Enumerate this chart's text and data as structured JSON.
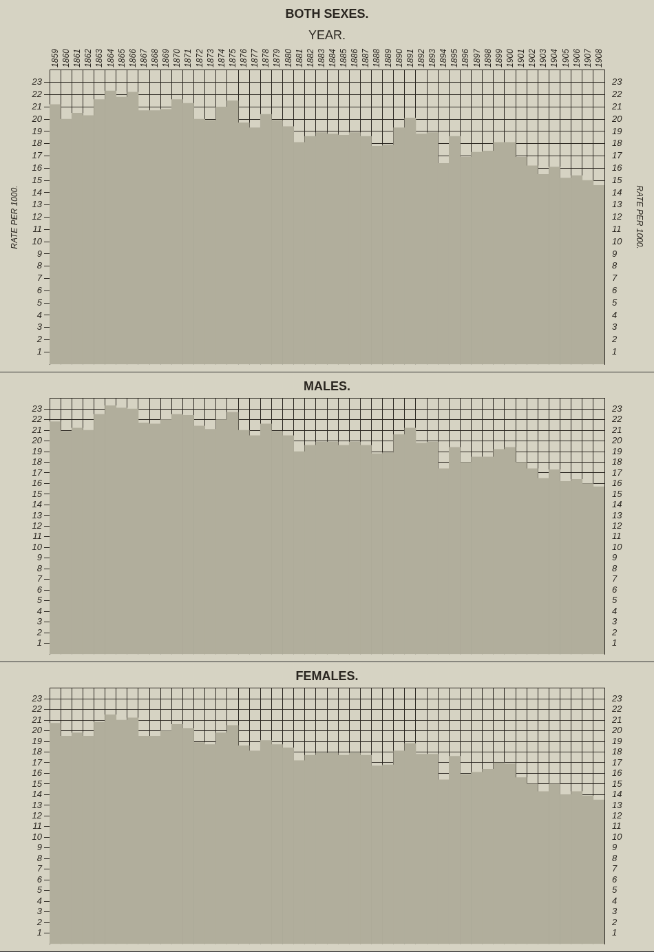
{
  "chart_data": [
    {
      "type": "bar",
      "title": "BOTH SEXES.",
      "xlabel": "YEAR.",
      "ylabel": "RATE PER 1000.",
      "y2label": "RATE PER 1000.",
      "categories": [
        "1859",
        "1860",
        "1861",
        "1862",
        "1863",
        "1864",
        "1865",
        "1866",
        "1867",
        "1868",
        "1869",
        "1870",
        "1871",
        "1872",
        "1873",
        "1874",
        "1875",
        "1876",
        "1877",
        "1878",
        "1879",
        "1880",
        "1881",
        "1882",
        "1883",
        "1884",
        "1885",
        "1886",
        "1887",
        "1888",
        "1889",
        "1890",
        "1891",
        "1892",
        "1893",
        "1894",
        "1895",
        "1896",
        "1897",
        "1898",
        "1899",
        "1900",
        "1901",
        "1902",
        "1903",
        "1904",
        "1905",
        "1906",
        "1907",
        "1908"
      ],
      "values": [
        21.2,
        20.0,
        20.5,
        20.3,
        21.6,
        22.3,
        21.8,
        22.2,
        20.7,
        20.7,
        20.8,
        21.6,
        21.3,
        20.0,
        19.9,
        21.0,
        21.5,
        19.7,
        19.3,
        20.4,
        19.9,
        19.4,
        18.1,
        18.6,
        18.9,
        18.8,
        18.7,
        18.9,
        18.6,
        17.8,
        17.9,
        19.3,
        20.1,
        18.8,
        18.9,
        16.4,
        18.6,
        16.9,
        17.3,
        17.4,
        18.1,
        18.1,
        16.9,
        16.2,
        15.5,
        16.1,
        15.2,
        15.4,
        15.0,
        14.6
      ],
      "color": "#b1ae9c",
      "ylim": [
        0,
        24
      ],
      "yticks": [
        1,
        2,
        3,
        4,
        5,
        6,
        7,
        8,
        9,
        10,
        11,
        12,
        13,
        14,
        15,
        16,
        17,
        18,
        19,
        20,
        21,
        22,
        23
      ],
      "y2lim": [
        0,
        24
      ],
      "y2ticks": [
        1,
        2,
        3,
        4,
        5,
        6,
        7,
        8,
        9,
        10,
        11,
        12,
        13,
        14,
        15,
        16,
        17,
        18,
        19,
        20,
        21,
        22,
        23
      ],
      "grid": true
    },
    {
      "type": "bar",
      "title": "MALES.",
      "categories": [
        "1859",
        "1860",
        "1861",
        "1862",
        "1863",
        "1864",
        "1865",
        "1866",
        "1867",
        "1868",
        "1869",
        "1870",
        "1871",
        "1872",
        "1873",
        "1874",
        "1875",
        "1876",
        "1877",
        "1878",
        "1879",
        "1880",
        "1881",
        "1882",
        "1883",
        "1884",
        "1885",
        "1886",
        "1887",
        "1888",
        "1889",
        "1890",
        "1891",
        "1892",
        "1893",
        "1894",
        "1895",
        "1896",
        "1897",
        "1898",
        "1899",
        "1900",
        "1901",
        "1902",
        "1903",
        "1904",
        "1905",
        "1906",
        "1907",
        "1908"
      ],
      "values": [
        21.8,
        20.9,
        21.2,
        21.0,
        22.5,
        23.3,
        23.1,
        23.0,
        21.7,
        21.6,
        22.0,
        22.5,
        22.4,
        21.4,
        21.1,
        22.0,
        22.7,
        21.0,
        20.5,
        21.6,
        20.9,
        20.5,
        19.0,
        19.6,
        19.9,
        19.9,
        19.6,
        19.9,
        19.6,
        18.8,
        18.9,
        20.6,
        21.2,
        19.8,
        19.9,
        17.4,
        19.4,
        18.0,
        18.5,
        18.5,
        19.2,
        19.4,
        18.0,
        17.4,
        16.5,
        17.3,
        16.2,
        16.4,
        16.0,
        15.7
      ],
      "color": "#b1ae9c",
      "ylim": [
        0,
        24
      ],
      "yticks": [
        1,
        2,
        3,
        4,
        5,
        6,
        7,
        8,
        9,
        10,
        11,
        12,
        13,
        14,
        15,
        16,
        17,
        18,
        19,
        20,
        21,
        22,
        23
      ],
      "y2lim": [
        0,
        24
      ],
      "y2ticks": [
        1,
        2,
        3,
        4,
        5,
        6,
        7,
        8,
        9,
        10,
        11,
        12,
        13,
        14,
        15,
        16,
        17,
        18,
        19,
        20,
        21,
        22,
        23
      ],
      "grid": true,
      "tick_labels": "y"
    },
    {
      "type": "bar",
      "title": "FEMALES.",
      "categories": [
        "1859",
        "1860",
        "1861",
        "1862",
        "1863",
        "1864",
        "1865",
        "1866",
        "1867",
        "1868",
        "1869",
        "1870",
        "1871",
        "1872",
        "1873",
        "1874",
        "1875",
        "1876",
        "1877",
        "1878",
        "1879",
        "1880",
        "1881",
        "1882",
        "1883",
        "1884",
        "1885",
        "1886",
        "1887",
        "1888",
        "1889",
        "1890",
        "1891",
        "1892",
        "1893",
        "1894",
        "1895",
        "1896",
        "1897",
        "1898",
        "1899",
        "1900",
        "1901",
        "1902",
        "1903",
        "1904",
        "1905",
        "1906",
        "1907",
        "1908"
      ],
      "values": [
        20.7,
        19.5,
        19.8,
        19.5,
        20.8,
        21.5,
        21.0,
        21.2,
        19.5,
        19.5,
        20.0,
        20.6,
        20.2,
        18.9,
        18.7,
        19.8,
        20.5,
        18.6,
        18.1,
        19.1,
        18.7,
        18.4,
        17.2,
        17.7,
        17.9,
        17.9,
        17.7,
        17.9,
        17.7,
        16.7,
        16.8,
        18.1,
        18.8,
        17.8,
        17.8,
        15.4,
        17.6,
        15.9,
        16.1,
        16.4,
        17.0,
        16.9,
        15.6,
        15.0,
        14.3,
        15.0,
        14.0,
        14.3,
        13.9,
        13.5
      ],
      "color": "#b1ae9c",
      "ylim": [
        0,
        24
      ],
      "yticks": [
        1,
        2,
        3,
        4,
        5,
        6,
        7,
        8,
        9,
        10,
        11,
        12,
        13,
        14,
        15,
        16,
        17,
        18,
        19,
        20,
        21,
        22,
        23
      ],
      "y2lim": [
        0,
        24
      ],
      "y2ticks": [
        1,
        2,
        3,
        4,
        5,
        6,
        7,
        8,
        9,
        10,
        11,
        12,
        13,
        14,
        15,
        16,
        17,
        18,
        19,
        20,
        21,
        22,
        23
      ],
      "grid": true,
      "tick_labels": "y"
    }
  ]
}
